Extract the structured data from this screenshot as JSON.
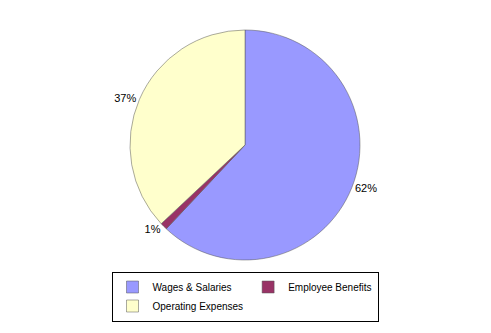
{
  "chart_data": {
    "type": "pie",
    "categories": [
      "Wages & Salaries",
      "Employee Benefits",
      "Operating Expenses"
    ],
    "values": [
      62,
      1,
      37
    ],
    "value_labels": [
      "62%",
      "1%",
      "37%"
    ],
    "colors": [
      "#9999ff",
      "#993366",
      "#ffffcc"
    ],
    "data_labels": true,
    "legend": "bottom"
  }
}
